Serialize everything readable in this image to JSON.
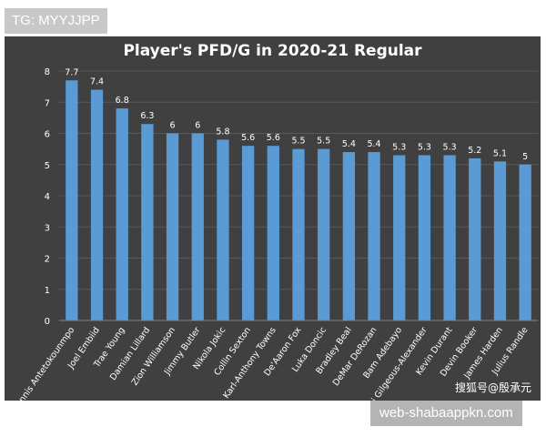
{
  "watermark_top": "TG: MYYJJPP",
  "watermark_bottom": "web-shabaappkn.com",
  "source_mark": "搜狐号@殷承元",
  "colors": {
    "panel_background": "#404040",
    "bar_fill": "#5b9bd5",
    "text": "#ffffff",
    "gridline": "#595959"
  },
  "chart_data": {
    "type": "bar",
    "title": "Player's PFD/G in 2020-21 Regular",
    "xlabel": "",
    "ylabel": "",
    "ylim": [
      0,
      8
    ],
    "yticks": [
      0,
      1,
      2,
      3,
      4,
      5,
      6,
      7,
      8
    ],
    "grid": true,
    "categories": [
      "Giannis Antetokounmpo",
      "Joel Embiid",
      "Trae Young",
      "Damian Lillard",
      "Zion Williamson",
      "Jimmy Butler",
      "Nikola Jokic",
      "Collin Sexton",
      "Karl-Anthony Towns",
      "De'Aaron Fox",
      "Luka Doncic",
      "Bradley Beal",
      "DeMar DeRozan",
      "Bam Adebayo",
      "Shai Gilgeous-Alexander",
      "Kevin Durant",
      "Devin Booker",
      "James Harden",
      "Julius Randle"
    ],
    "values": [
      7.7,
      7.4,
      6.8,
      6.3,
      6,
      6,
      5.8,
      5.6,
      5.6,
      5.5,
      5.5,
      5.4,
      5.4,
      5.3,
      5.3,
      5.3,
      5.2,
      5.1,
      5
    ],
    "value_labels": [
      "7.7",
      "7.4",
      "6.8",
      "6.3",
      "6",
      "6",
      "5.8",
      "5.6",
      "5.6",
      "5.5",
      "5.5",
      "5.4",
      "5.4",
      "5.3",
      "5.3",
      "5.3",
      "5.2",
      "5.1",
      "5"
    ]
  }
}
